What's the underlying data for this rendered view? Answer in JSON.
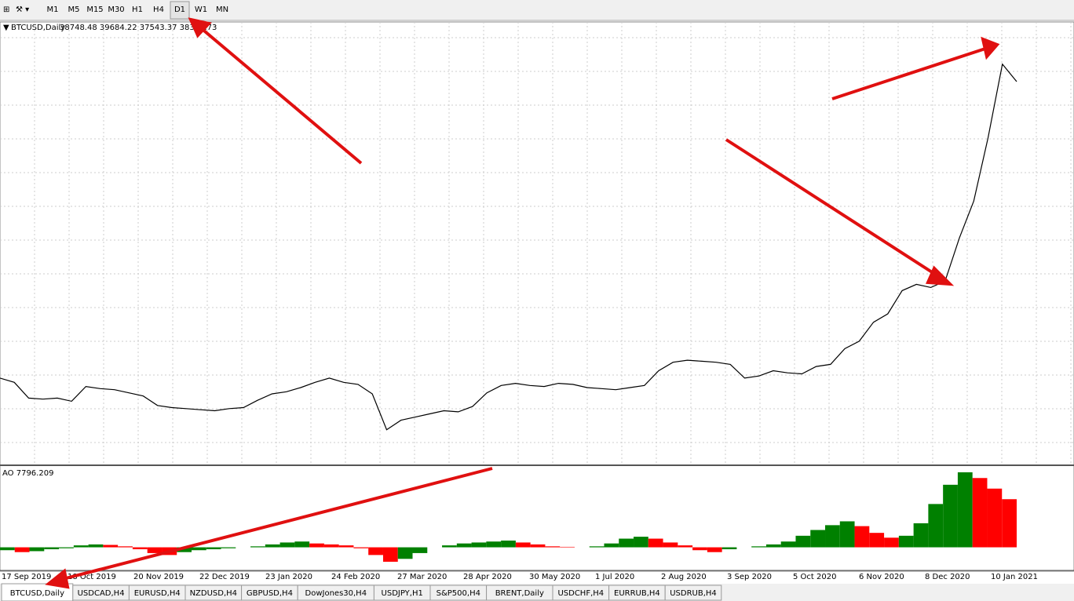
{
  "toolbar": {
    "timeframes": [
      "M1",
      "M5",
      "M15",
      "M30",
      "H1",
      "H4",
      "D1",
      "W1",
      "MN"
    ],
    "active": 6
  },
  "chart_data": {
    "type": "line",
    "title": "BTCUSD,Daily",
    "ohlc": "38748.48 39684.22 37543.37 38343.73",
    "color": "#000000",
    "ylim": [
      2000,
      44000
    ],
    "grid": true,
    "x_labels": [
      "17 Sep 2019",
      "18 Oct 2019",
      "20 Nov 2019",
      "22 Dec 2019",
      "23 Jan 2020",
      "24 Feb 2020",
      "27 Mar 2020",
      "28 Apr 2020",
      "30 May 2020",
      "1 Jul 2020",
      "2 Aug 2020",
      "3 Sep 2020",
      "5 Oct 2020",
      "6 Nov 2020",
      "8 Dec 2020",
      "10 Jan 2021"
    ],
    "values": [
      10200,
      9800,
      8300,
      8200,
      8300,
      8000,
      9400,
      9200,
      9100,
      8800,
      8500,
      7600,
      7400,
      7300,
      7200,
      7100,
      7300,
      7400,
      8100,
      8700,
      8900,
      9300,
      9800,
      10200,
      9800,
      9600,
      8700,
      5300,
      6200,
      6500,
      6800,
      7100,
      7000,
      7500,
      8800,
      9500,
      9700,
      9500,
      9400,
      9700,
      9600,
      9300,
      9200,
      9100,
      9300,
      9500,
      10900,
      11700,
      11900,
      11800,
      11700,
      11500,
      10200,
      10400,
      10900,
      10700,
      10600,
      11300,
      11500,
      13000,
      13700,
      15500,
      16300,
      18500,
      19100,
      18800,
      19400,
      23500,
      27000,
      33000,
      40000,
      38343
    ]
  },
  "indicator": {
    "title": "AO 7796.209",
    "ylim": [
      -2400,
      8200
    ],
    "values": [
      -300,
      -500,
      -400,
      -200,
      -100,
      200,
      300,
      250,
      100,
      -200,
      -600,
      -800,
      -500,
      -300,
      -200,
      -100,
      0,
      100,
      300,
      500,
      600,
      400,
      300,
      200,
      -100,
      -800,
      -1500,
      -1200,
      -600,
      0,
      200,
      400,
      500,
      600,
      700,
      500,
      300,
      100,
      50,
      0,
      100,
      400,
      900,
      1100,
      900,
      500,
      200,
      -300,
      -500,
      -200,
      0,
      100,
      300,
      600,
      1200,
      1800,
      2300,
      2700,
      2200,
      1500,
      1000,
      1200,
      2500,
      4500,
      6500,
      7796.209,
      7200,
      6100,
      5000
    ]
  },
  "tabs": [
    "BTCUSD,Daily",
    "USDCAD,H4",
    "EURUSD,H4",
    "NZDUSD,H4",
    "GBPUSD,H4",
    "DowJones30,H4",
    "USDJPY,H1",
    "S&P500,H4",
    "BRENT,Daily",
    "USDCHF,H4",
    "EURRUB,H4",
    "USDRUB,H4"
  ],
  "active_tab": 0
}
